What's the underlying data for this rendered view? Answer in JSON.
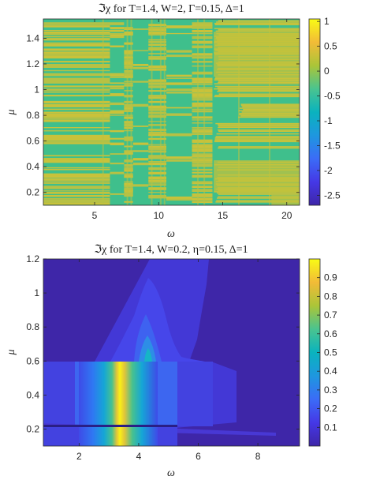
{
  "chart_data": [
    {
      "type": "heatmap",
      "title": "ℑχ for T=1.4, W=2, Γ=0.15, Δ=1",
      "xlabel": "ω",
      "ylabel": "μ",
      "xlim": [
        1,
        21
      ],
      "ylim": [
        0.1,
        1.55
      ],
      "xticks": [
        5,
        10,
        15,
        20
      ],
      "yticks": [
        0.2,
        0.4,
        0.6,
        0.8,
        1,
        1.2,
        1.4
      ],
      "colorbar": {
        "limits": [
          -2.7,
          1.05
        ],
        "ticks": [
          1,
          0.5,
          0,
          -0.5,
          -1,
          -1.5,
          -2,
          -2.5
        ],
        "colormap": "parula"
      },
      "background_value": -0.5,
      "stripe_value": 0.45,
      "description_regions": [
        {
          "x": [
            1,
            21
          ],
          "y": [
            0.1,
            1.55
          ],
          "value": -0.5
        }
      ],
      "grid": false
    },
    {
      "type": "heatmap",
      "title": "ℑχ for T=1.4, W=0.2, η=0.15, Δ=1",
      "xlabel": "ω",
      "ylabel": "μ",
      "xlim": [
        0.8,
        9.4
      ],
      "ylim": [
        0.1,
        1.2
      ],
      "xticks": [
        2,
        4,
        6,
        8
      ],
      "yticks": [
        0.2,
        0.4,
        0.6,
        0.8,
        1,
        1.2
      ],
      "colorbar": {
        "limits": [
          0,
          1
        ],
        "ticks": [
          0.9,
          0.8,
          0.7,
          0.6,
          0.5,
          0.4,
          0.3,
          0.2,
          0.1
        ],
        "colormap": "parula"
      },
      "peak": {
        "omega": 3.15,
        "value": 0.98
      },
      "bands_mu": [
        [
          0.24,
          0.58
        ],
        [
          0.1,
          0.21
        ]
      ],
      "grid": false
    }
  ],
  "colors": {
    "background": "#ffffff",
    "axis": "#262626"
  }
}
